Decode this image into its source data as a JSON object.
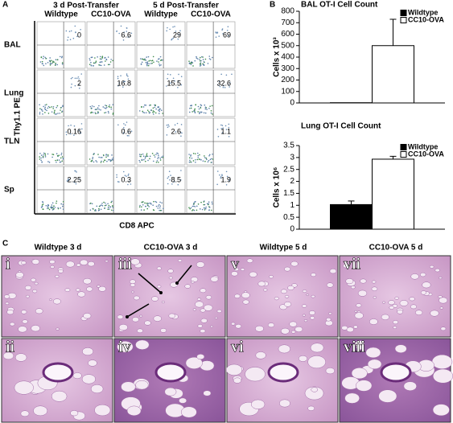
{
  "panel_a": {
    "label": "A",
    "groups": [
      "3 d Post-Transfer",
      "5 d Post-Transfer"
    ],
    "columns": [
      "Wildtype",
      "CC10-OVA",
      "Wildtype",
      "CC10-OVA"
    ],
    "rows": [
      {
        "name": "BAL",
        "values": [
          0,
          6.6,
          29,
          69
        ]
      },
      {
        "name": "Lung",
        "values": [
          2,
          16.8,
          15.5,
          32.6
        ]
      },
      {
        "name": "TLN",
        "values": [
          0.16,
          0.6,
          2.6,
          1.1
        ]
      },
      {
        "name": "Sp",
        "values": [
          2.25,
          0.3,
          8.5,
          1.9
        ]
      }
    ],
    "y_axis": "Thy1.1 PE",
    "x_axis": "CD8 APC"
  },
  "panel_b": {
    "label": "B"
  },
  "chart_data": [
    {
      "type": "bar",
      "title": "BAL OT-I Cell Count",
      "ylabel": "Cells x 10³",
      "categories": [
        null
      ],
      "series": [
        {
          "name": "Wildtype",
          "color": "#000000",
          "values": [
            2
          ]
        },
        {
          "name": "CC10-OVA",
          "color": "#ffffff",
          "values": [
            500
          ],
          "errors": [
            230
          ]
        }
      ],
      "ylim": [
        0,
        800
      ],
      "yticks": [
        0,
        100,
        200,
        300,
        400,
        500,
        600,
        700,
        800
      ],
      "legend": "top-right"
    },
    {
      "type": "bar",
      "title": "Lung OT-I Cell Count",
      "ylabel": "Cells x 10⁶",
      "categories": [
        null
      ],
      "series": [
        {
          "name": "Wildtype",
          "color": "#000000",
          "values": [
            1.03
          ],
          "errors": [
            0.15
          ]
        },
        {
          "name": "CC10-OVA",
          "color": "#ffffff",
          "values": [
            2.93
          ],
          "errors": [
            0.12
          ]
        }
      ],
      "ylim": [
        0,
        3.5
      ],
      "yticks": [
        0,
        0.5,
        1,
        1.5,
        2,
        2.5,
        3,
        3.5
      ],
      "legend": "top-right"
    }
  ],
  "panel_c": {
    "label": "C",
    "titles": [
      "Wildtype 3 d",
      "CC10-OVA 3 d",
      "Wildtype 5 d",
      "CC10-OVA 5 d"
    ],
    "panels": [
      "i",
      "iii",
      "v",
      "vii",
      "ii",
      "iv",
      "vi",
      "viii"
    ]
  }
}
